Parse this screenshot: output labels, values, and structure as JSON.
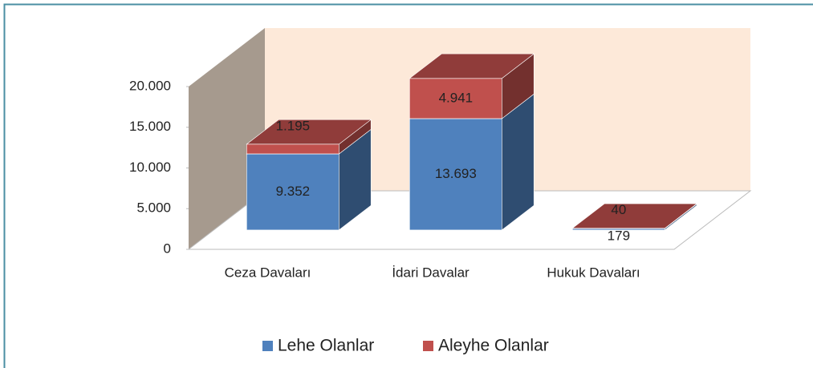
{
  "chart_data": {
    "type": "bar3d_stacked",
    "categories": [
      "Ceza Davaları",
      "İdari Davalar",
      "Hukuk Davaları"
    ],
    "series": [
      {
        "name": "Lehe Olanlar",
        "color": "#4f81bd",
        "values": [
          9352,
          13693,
          179
        ],
        "value_labels": [
          "9.352",
          "13.693",
          "179"
        ]
      },
      {
        "name": "Aleyhe Olanlar",
        "color": "#c0504d",
        "values": [
          1195,
          4941,
          40
        ],
        "value_labels": [
          "1.195",
          "4.941",
          "40"
        ]
      }
    ],
    "ylim": [
      0,
      20000
    ],
    "yticks": [
      0,
      {
        "value": 5000,
        "label": "5.000"
      },
      {
        "value": 10000,
        "label": "10.000"
      },
      {
        "value": 15000,
        "label": "15.000"
      },
      {
        "value": 20000,
        "label": "20.000"
      }
    ],
    "legend": "bottom"
  }
}
